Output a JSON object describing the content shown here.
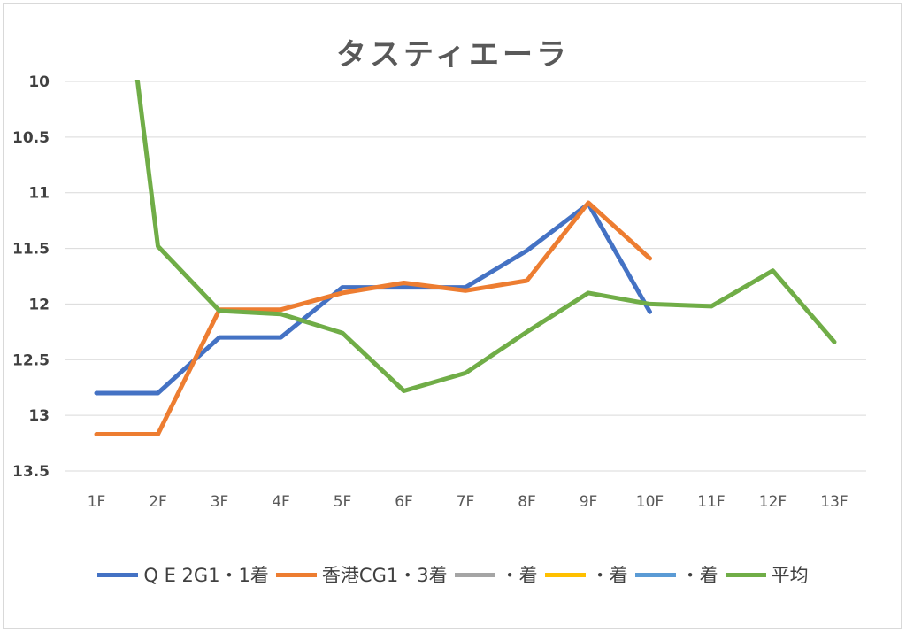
{
  "chart_data": {
    "type": "line",
    "title": "タスティエーラ",
    "categories": [
      "1F",
      "2F",
      "3F",
      "4F",
      "5F",
      "6F",
      "7F",
      "8F",
      "9F",
      "10F",
      "11F",
      "12F",
      "13F"
    ],
    "ylim": [
      10,
      13.5
    ],
    "y_reversed": true,
    "y_ticks": [
      "10",
      "10.5",
      "11",
      "11.5",
      "12",
      "12.5",
      "13",
      "13.5"
    ],
    "grid": true,
    "legend_position": "bottom",
    "series": [
      {
        "name": "Q E 2G1・1着",
        "color": "#4472c4",
        "values": [
          12.8,
          12.8,
          12.3,
          12.3,
          11.85,
          11.85,
          11.85,
          11.52,
          11.1,
          12.07,
          null,
          null,
          null
        ]
      },
      {
        "name": "香港CG1・3着",
        "color": "#ed7d31",
        "values": [
          13.17,
          13.17,
          12.05,
          12.05,
          11.9,
          11.81,
          11.88,
          11.79,
          11.09,
          11.59,
          null,
          null,
          null
        ]
      },
      {
        "name": "・着",
        "color": "#a5a5a5",
        "values": [
          null,
          null,
          null,
          null,
          null,
          null,
          null,
          null,
          null,
          null,
          null,
          null,
          null
        ]
      },
      {
        "name": "・着",
        "color": "#ffc000",
        "values": [
          null,
          null,
          null,
          null,
          null,
          null,
          null,
          null,
          null,
          null,
          null,
          null,
          null
        ]
      },
      {
        "name": "・着",
        "color": "#5b9bd5",
        "values": [
          null,
          null,
          null,
          null,
          null,
          null,
          null,
          null,
          null,
          null,
          null,
          null,
          null
        ]
      },
      {
        "name": "平均",
        "color": "#70ad47",
        "values": [
          7.0,
          11.48,
          12.06,
          12.09,
          12.26,
          12.78,
          12.62,
          12.25,
          11.9,
          12.0,
          12.02,
          11.7,
          12.34
        ]
      }
    ]
  }
}
